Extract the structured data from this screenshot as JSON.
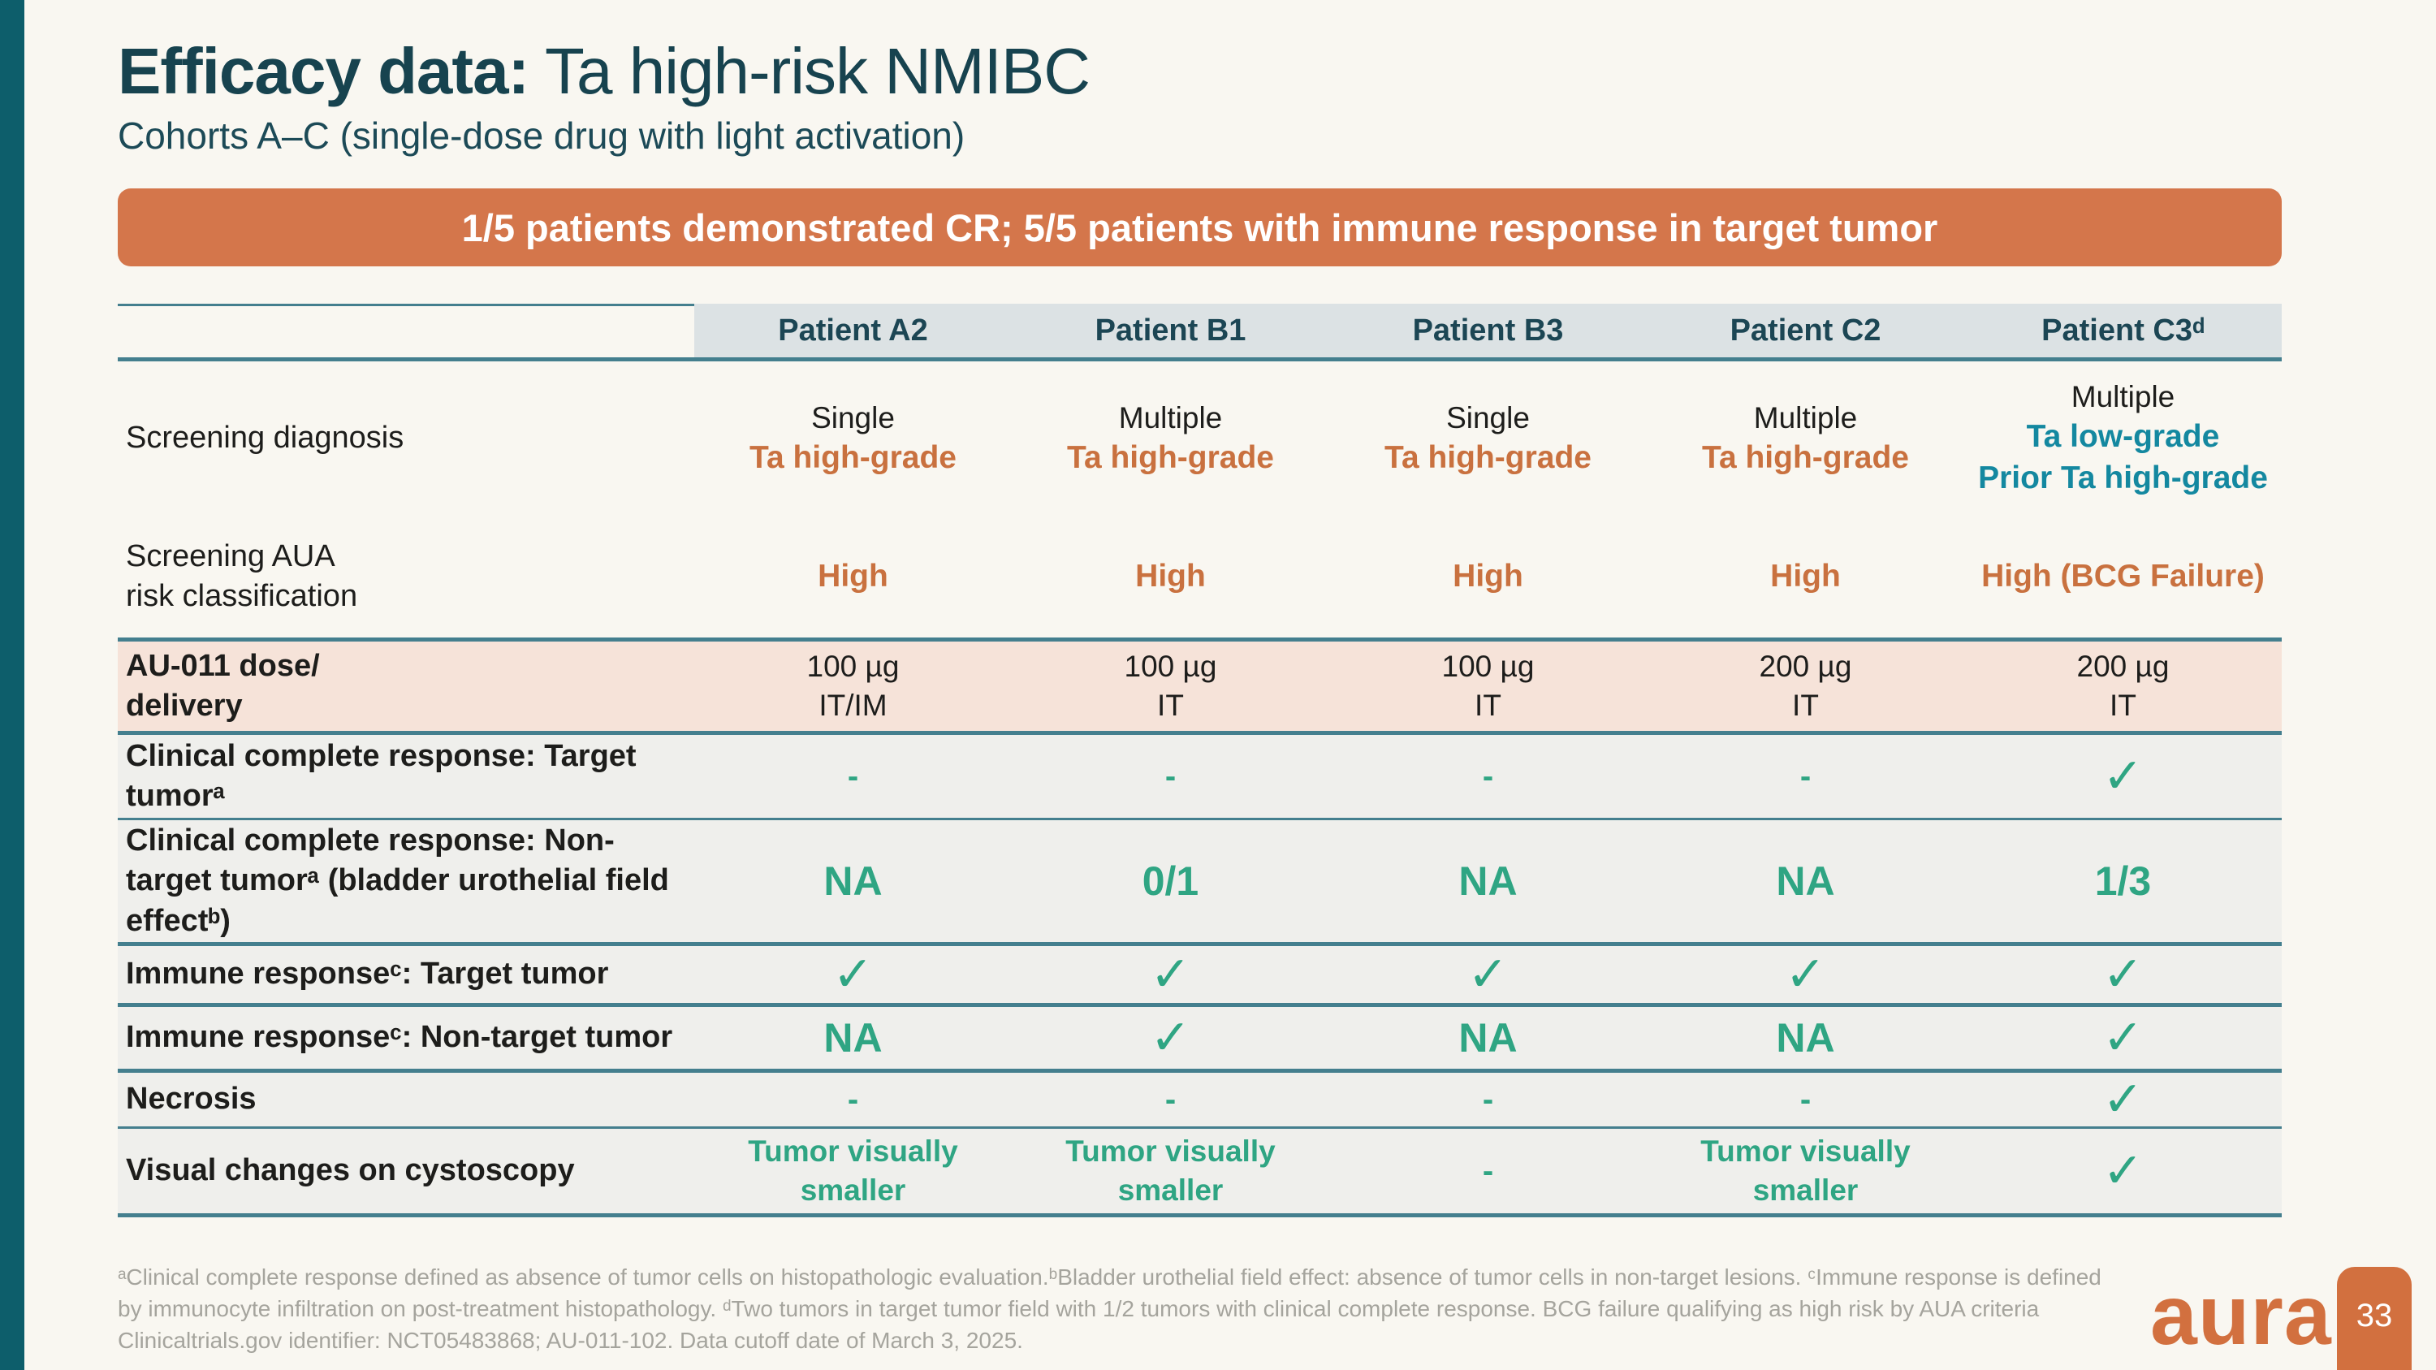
{
  "slide": {
    "title_bold": "Efficacy data:",
    "title_rest": " Ta high-risk NMIBC",
    "subtitle": "Cohorts A–C (single-dose drug with light activation)",
    "banner": "1/5 patients demonstrated CR; 5/5 patients with immune response in target tumor",
    "footnote": "ᵃClinical complete response defined as absence of tumor cells on histopathologic evaluation.ᵇBladder urothelial field effect: absence of tumor cells in non-target lesions. ᶜImmune response is defined by immunocyte infiltration on post-treatment histopathology. ᵈTwo tumors in target tumor field with 1/2 tumors with clinical complete response. BCG failure qualifying as high risk by AUA criteria Clinicaltrials.gov identifier: NCT05483868; AU-011-102. Data cutoff date of March 3, 2025.",
    "logo_text": "aura",
    "page_number": "33"
  },
  "colors": {
    "accent_teal_bar": "#0d5e6b",
    "title_teal": "#17434f",
    "banner_orange": "#d4764b",
    "orange_text": "#c9713f",
    "teal_text": "#1488a0",
    "green_text": "#2fa583",
    "header_bg": "#dce2e4",
    "peach_row_bg": "#f6e3d9",
    "gray_row_bg": "#efefec",
    "rule_teal": "#447f8e",
    "footnote_gray": "#a5a49d",
    "background": "#f9f7f1"
  },
  "icons": {
    "check": "✓",
    "dash": "-"
  },
  "table": {
    "columns": [
      "Patient A2",
      "Patient B1",
      "Patient B3",
      "Patient C2",
      "Patient C3ᵈ"
    ],
    "rows": [
      {
        "label": "Screening diagnosis",
        "bold": false,
        "bg": "plain",
        "border": "none",
        "h": 190,
        "cells": [
          [
            {
              "t": "Single",
              "c": "ink"
            },
            {
              "t": "Ta high-grade",
              "c": "orange"
            }
          ],
          [
            {
              "t": "Multiple",
              "c": "ink"
            },
            {
              "t": "Ta high-grade",
              "c": "orange"
            }
          ],
          [
            {
              "t": "Single",
              "c": "ink"
            },
            {
              "t": "Ta high-grade",
              "c": "orange"
            }
          ],
          [
            {
              "t": "Multiple",
              "c": "ink"
            },
            {
              "t": "Ta high-grade",
              "c": "orange"
            }
          ],
          [
            {
              "t": "Multiple",
              "c": "ink"
            },
            {
              "t": "Ta low-grade",
              "c": "teal"
            },
            {
              "t": "Prior Ta high-grade",
              "c": "teal"
            }
          ]
        ]
      },
      {
        "label": "Screening AUA\nrisk classification",
        "bold": false,
        "bg": "plain",
        "border": "thick",
        "h": 150,
        "cells": [
          [
            {
              "t": "High",
              "c": "orange"
            }
          ],
          [
            {
              "t": "High",
              "c": "orange"
            }
          ],
          [
            {
              "t": "High",
              "c": "orange"
            }
          ],
          [
            {
              "t": "High",
              "c": "orange"
            }
          ],
          [
            {
              "t": "High (BCG Failure)",
              "c": "orange"
            }
          ]
        ]
      },
      {
        "label": "AU-011 dose/\ndelivery",
        "bold": true,
        "bg": "peach",
        "border": "thick",
        "h": 110,
        "cells": [
          [
            {
              "t": "100 µg",
              "c": "ink"
            },
            {
              "t": "IT/IM",
              "c": "ink"
            }
          ],
          [
            {
              "t": "100 µg",
              "c": "ink"
            },
            {
              "t": "IT",
              "c": "ink"
            }
          ],
          [
            {
              "t": "100 µg",
              "c": "ink"
            },
            {
              "t": "IT",
              "c": "ink"
            }
          ],
          [
            {
              "t": "200 µg",
              "c": "ink"
            },
            {
              "t": "IT",
              "c": "ink"
            }
          ],
          [
            {
              "t": "200 µg",
              "c": "ink"
            },
            {
              "t": "IT",
              "c": "ink"
            }
          ]
        ]
      },
      {
        "label": "Clinical complete response: Target tumorᵃ",
        "bold": true,
        "bg": "gray",
        "border": "thin",
        "h": 102,
        "cells": [
          [
            {
              "t": "-",
              "c": "dash"
            }
          ],
          [
            {
              "t": "-",
              "c": "dash"
            }
          ],
          [
            {
              "t": "-",
              "c": "dash"
            }
          ],
          [
            {
              "t": "-",
              "c": "dash"
            }
          ],
          [
            {
              "icon": "check"
            }
          ]
        ]
      },
      {
        "label": "Clinical complete response: Non-target tumorᵃ (bladder urothelial field effectᵇ)",
        "bold": true,
        "bg": "gray",
        "border": "thick",
        "h": 150,
        "cells": [
          [
            {
              "t": "NA",
              "c": "greenbig"
            }
          ],
          [
            {
              "t": "0/1",
              "c": "greenbig"
            }
          ],
          [
            {
              "t": "NA",
              "c": "greenbig"
            }
          ],
          [
            {
              "t": "NA",
              "c": "greenbig"
            }
          ],
          [
            {
              "t": "1/3",
              "c": "greenbig"
            }
          ]
        ]
      },
      {
        "label": "Immune responseᶜ: Target tumor",
        "bold": true,
        "bg": "gray",
        "border": "thick",
        "h": 70,
        "cells": [
          [
            {
              "icon": "check"
            }
          ],
          [
            {
              "icon": "check"
            }
          ],
          [
            {
              "icon": "check"
            }
          ],
          [
            {
              "icon": "check"
            }
          ],
          [
            {
              "icon": "check"
            }
          ]
        ]
      },
      {
        "label": "Immune responseᶜ: Non-target tumor",
        "bold": true,
        "bg": "gray",
        "border": "thick",
        "h": 76,
        "cells": [
          [
            {
              "t": "NA",
              "c": "greenbig"
            }
          ],
          [
            {
              "icon": "check"
            }
          ],
          [
            {
              "t": "NA",
              "c": "greenbig"
            }
          ],
          [
            {
              "t": "NA",
              "c": "greenbig"
            }
          ],
          [
            {
              "icon": "check"
            }
          ]
        ]
      },
      {
        "label": "Necrosis",
        "bold": true,
        "bg": "gray",
        "border": "thin",
        "h": 66,
        "cells": [
          [
            {
              "t": "-",
              "c": "dash"
            }
          ],
          [
            {
              "t": "-",
              "c": "dash"
            }
          ],
          [
            {
              "t": "-",
              "c": "dash"
            }
          ],
          [
            {
              "t": "-",
              "c": "dash"
            }
          ],
          [
            {
              "icon": "check"
            }
          ]
        ]
      },
      {
        "label": "Visual changes on cystoscopy",
        "bold": true,
        "bg": "gray",
        "border": "thick",
        "h": 104,
        "cells": [
          [
            {
              "t": "Tumor visually",
              "c": "green"
            },
            {
              "t": "smaller",
              "c": "green"
            }
          ],
          [
            {
              "t": "Tumor visually",
              "c": "green"
            },
            {
              "t": "smaller",
              "c": "green"
            }
          ],
          [
            {
              "t": "-",
              "c": "dash"
            }
          ],
          [
            {
              "t": "Tumor visually",
              "c": "green"
            },
            {
              "t": "smaller",
              "c": "green"
            }
          ],
          [
            {
              "icon": "check"
            }
          ]
        ]
      }
    ]
  }
}
